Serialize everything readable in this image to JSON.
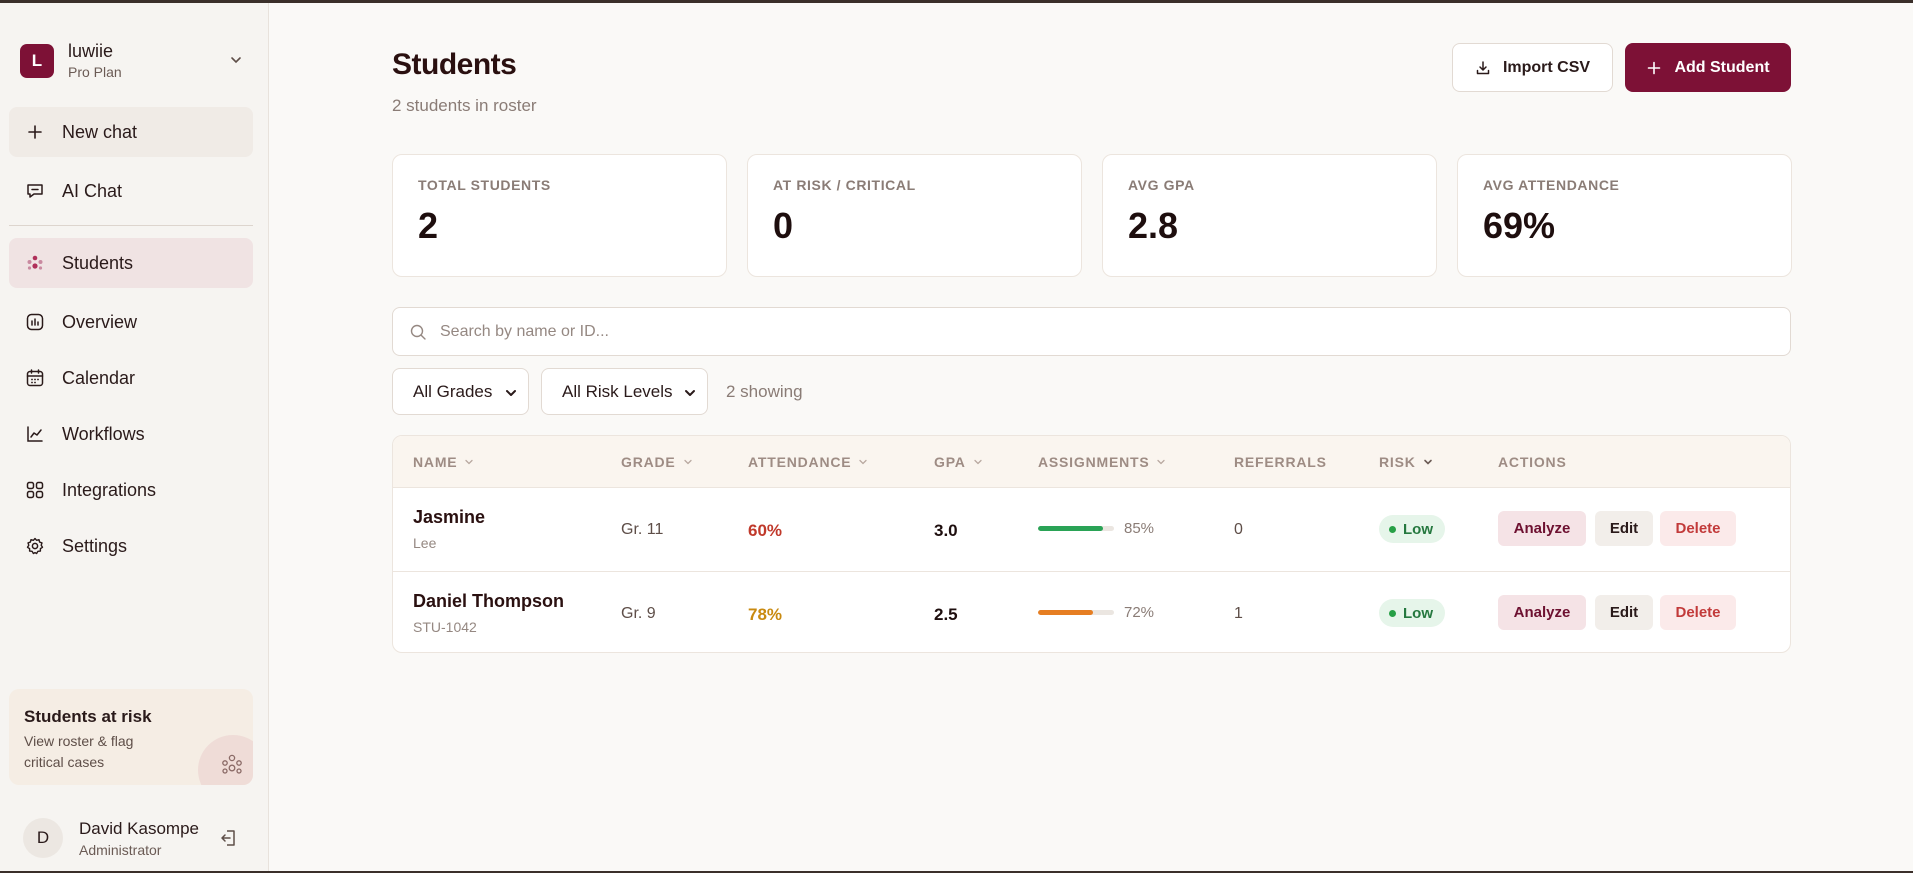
{
  "sidebar": {
    "org": {
      "initial": "L",
      "name": "luwiie",
      "plan": "Pro Plan"
    },
    "new_chat": "New chat",
    "items": [
      {
        "label": "AI Chat",
        "icon": "chat-icon"
      },
      {
        "label": "Students",
        "icon": "students-icon",
        "active": true
      },
      {
        "label": "Overview",
        "icon": "overview-icon"
      },
      {
        "label": "Calendar",
        "icon": "calendar-icon"
      },
      {
        "label": "Workflows",
        "icon": "trend-chart-icon"
      },
      {
        "label": "Integrations",
        "icon": "grid-icon"
      },
      {
        "label": "Settings",
        "icon": "gear-icon"
      }
    ],
    "risk_card": {
      "title": "Students at risk",
      "description": "View roster & flag critical cases"
    },
    "user": {
      "initial": "D",
      "name": "David Kasompe",
      "role": "Administrator"
    }
  },
  "header": {
    "title": "Students",
    "subtitle": "2 students in roster",
    "import_label": "Import CSV",
    "add_label": "Add Student"
  },
  "stats": [
    {
      "label": "TOTAL STUDENTS",
      "value": "2"
    },
    {
      "label": "AT RISK / CRITICAL",
      "value": "0"
    },
    {
      "label": "AVG GPA",
      "value": "2.8"
    },
    {
      "label": "AVG ATTENDANCE",
      "value": "69%"
    }
  ],
  "search": {
    "placeholder": "Search by name or ID..."
  },
  "filters": {
    "grades": "All Grades",
    "risk": "All Risk Levels",
    "showing": "2 showing"
  },
  "table": {
    "columns": [
      "NAME",
      "GRADE",
      "ATTENDANCE",
      "GPA",
      "ASSIGNMENTS",
      "REFERRALS",
      "RISK",
      "ACTIONS"
    ],
    "rows": [
      {
        "name": "Jasmine",
        "sub": "Lee",
        "grade": "Gr. 11",
        "attendance": "60%",
        "attendance_color": "#c0392b",
        "gpa": "3.0",
        "assignments": "85%",
        "assignments_value": 85,
        "assignments_color": "#2aa356",
        "referrals": "0",
        "risk": "Low"
      },
      {
        "name": "Daniel Thompson",
        "sub": "STU-1042",
        "grade": "Gr. 9",
        "attendance": "78%",
        "attendance_color": "#c98a10",
        "gpa": "2.5",
        "assignments": "72%",
        "assignments_value": 72,
        "assignments_color": "#e67e22",
        "referrals": "1",
        "risk": "Low"
      }
    ],
    "actions": {
      "analyze": "Analyze",
      "edit": "Edit",
      "delete": "Delete"
    }
  },
  "colors": {
    "brand": "#7d1136",
    "risk_low": "#27a046"
  }
}
